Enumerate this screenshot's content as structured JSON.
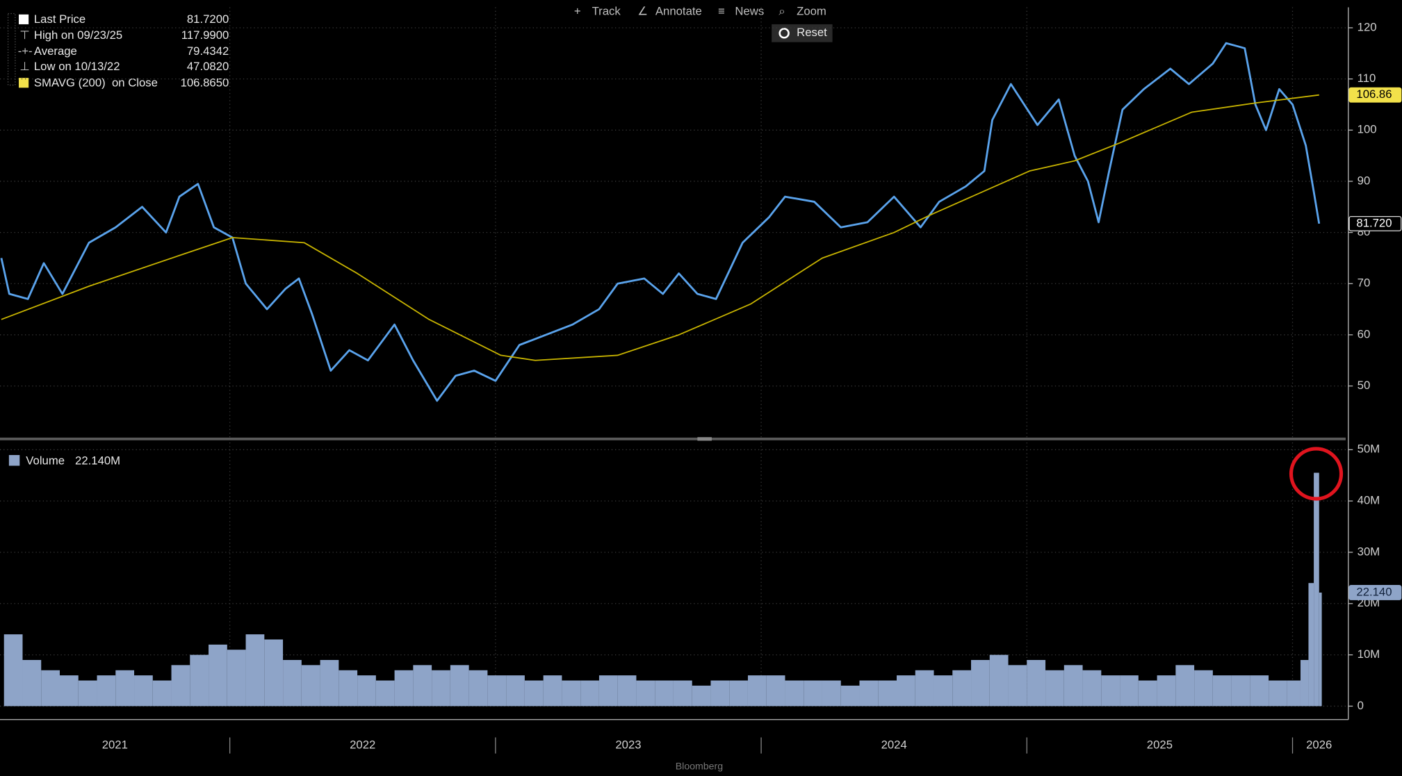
{
  "toolbar": [
    "Track",
    "Annotate",
    "News",
    "Zoom"
  ],
  "reset": "Reset",
  "source": "Bloomberg",
  "chart_data": [
    {
      "type": "line",
      "legend": [
        {
          "name": "Last Price",
          "value": "81.7200"
        },
        {
          "name": "High on 09/23/25",
          "value": "117.9900"
        },
        {
          "name": "Average",
          "value": "79.4342"
        },
        {
          "name": "Low on 10/13/22",
          "value": "47.0820"
        },
        {
          "name": "SMAVG (200)  on Close",
          "value": "106.8650"
        }
      ],
      "series": [
        {
          "color": "#5aa3ec",
          "x": [
            2021.14,
            2021.17,
            2021.24,
            2021.3,
            2021.37,
            2021.47,
            2021.57,
            2021.67,
            2021.76,
            2021.81,
            2021.88,
            2021.94,
            2022.01,
            2022.06,
            2022.14,
            2022.21,
            2022.26,
            2022.31,
            2022.38,
            2022.45,
            2022.52,
            2022.62,
            2022.69,
            2022.78,
            2022.85,
            2022.92,
            2023.0,
            2023.09,
            2023.19,
            2023.29,
            2023.39,
            2023.46,
            2023.56,
            2023.63,
            2023.69,
            2023.76,
            2023.83,
            2023.93,
            2024.03,
            2024.09,
            2024.2,
            2024.3,
            2024.4,
            2024.5,
            2024.6,
            2024.67,
            2024.77,
            2024.84,
            2024.87,
            2024.94,
            2025.04,
            2025.12,
            2025.18,
            2025.23,
            2025.27,
            2025.31,
            2025.36,
            2025.44,
            2025.54,
            2025.61,
            2025.7,
            2025.75,
            2025.82,
            2025.86,
            2025.9,
            2025.95,
            2026.0,
            2026.05,
            2026.08,
            2026.1
          ],
          "values": [
            75,
            68,
            67,
            74,
            68,
            78,
            81,
            85,
            80,
            87,
            89.5,
            81,
            79,
            70,
            65,
            69,
            71,
            64,
            53,
            57,
            55,
            62,
            55,
            47.1,
            52,
            53,
            51,
            58,
            60,
            62,
            65,
            70,
            71,
            68,
            72,
            68,
            67,
            78,
            83,
            87,
            86,
            81,
            82,
            87,
            81,
            86,
            89,
            92,
            102,
            109,
            101,
            106,
            95,
            90,
            82,
            92,
            104,
            108,
            112,
            109,
            113,
            117,
            116,
            105,
            100,
            108,
            105,
            97,
            88,
            81.72
          ]
        },
        {
          "color": "#c8b400",
          "x": [
            2021.14,
            2021.47,
            2021.81,
            2022.01,
            2022.28,
            2022.48,
            2022.75,
            2023.02,
            2023.15,
            2023.46,
            2023.69,
            2023.96,
            2024.23,
            2024.5,
            2024.64,
            2025.01,
            2025.18,
            2025.35,
            2025.62,
            2025.86,
            2026.1
          ],
          "values": [
            63,
            69.5,
            75.5,
            79,
            78,
            72,
            63,
            56,
            55,
            56,
            60,
            66,
            75,
            80,
            83.5,
            92,
            94,
            97.5,
            103.5,
            105.3,
            106.865
          ]
        }
      ],
      "ylim": [
        40,
        124
      ],
      "yticks": [
        50,
        60,
        70,
        80,
        90,
        100,
        110,
        120
      ],
      "tags": [
        {
          "value": 106.865,
          "label": "106.86",
          "color": "#f2e14a",
          "text_color": "#000000"
        },
        {
          "value": 81.72,
          "label": "81.720",
          "color": "#000000",
          "text_color": "#ffffff"
        }
      ]
    },
    {
      "type": "bar",
      "name": "Volume",
      "legend_value": "22.140M",
      "color": "#8ea4c8",
      "x": [
        2021.15,
        2021.22,
        2021.29,
        2021.36,
        2021.43,
        2021.5,
        2021.57,
        2021.64,
        2021.71,
        2021.78,
        2021.85,
        2021.92,
        2021.99,
        2022.06,
        2022.13,
        2022.2,
        2022.27,
        2022.34,
        2022.41,
        2022.48,
        2022.55,
        2022.62,
        2022.69,
        2022.76,
        2022.83,
        2022.9,
        2022.97,
        2023.04,
        2023.11,
        2023.18,
        2023.25,
        2023.32,
        2023.39,
        2023.46,
        2023.53,
        2023.6,
        2023.67,
        2023.74,
        2023.81,
        2023.88,
        2023.95,
        2024.02,
        2024.09,
        2024.16,
        2024.23,
        2024.3,
        2024.37,
        2024.44,
        2024.51,
        2024.58,
        2024.65,
        2024.72,
        2024.79,
        2024.86,
        2024.93,
        2025.0,
        2025.07,
        2025.14,
        2025.21,
        2025.28,
        2025.35,
        2025.42,
        2025.49,
        2025.56,
        2025.63,
        2025.7,
        2025.77,
        2025.84,
        2025.91,
        2025.98,
        2026.03,
        2026.06,
        2026.08,
        2026.1
      ],
      "values": [
        14,
        9,
        7,
        6,
        5,
        6,
        7,
        6,
        5,
        8,
        10,
        12,
        11,
        14,
        13,
        9,
        8,
        9,
        7,
        6,
        5,
        7,
        8,
        7,
        8,
        7,
        6,
        6,
        5,
        6,
        5,
        5,
        6,
        6,
        5,
        5,
        5,
        4,
        5,
        5,
        6,
        6,
        5,
        5,
        5,
        4,
        5,
        5,
        6,
        7,
        6,
        7,
        9,
        10,
        8,
        9,
        7,
        8,
        7,
        6,
        6,
        5,
        6,
        8,
        7,
        6,
        6,
        6,
        5,
        5,
        9,
        24,
        45.5,
        22.14
      ],
      "ylim": [
        0,
        51.4
      ],
      "yticks": [
        0,
        {
          "value": 10,
          "label": "10M"
        },
        {
          "value": 20,
          "label": "20M"
        },
        {
          "value": 30,
          "label": "30M"
        },
        {
          "value": 40,
          "label": "40M"
        },
        {
          "value": 50,
          "label": "50M"
        }
      ],
      "tag": {
        "value": 22.14,
        "label": "22.140",
        "color": "#8ea4c8",
        "text_color": "#10203a"
      },
      "xlim": [
        2021.135,
        2026.2
      ],
      "xticks": [
        2021,
        2022,
        2023,
        2024,
        2025,
        2026
      ]
    }
  ]
}
